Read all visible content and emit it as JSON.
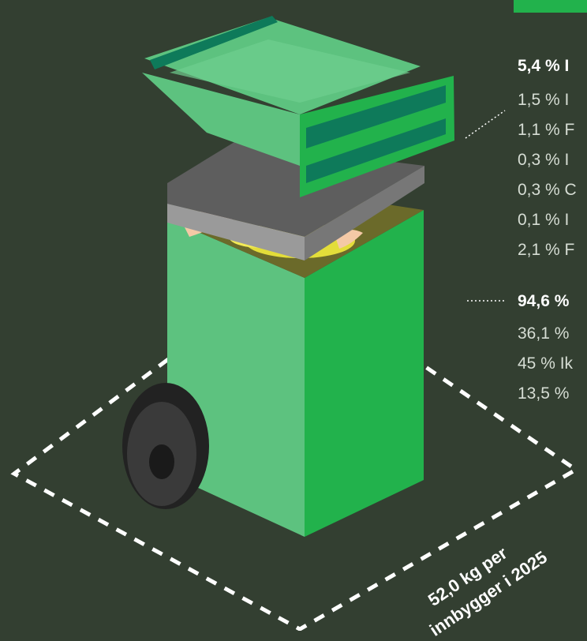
{
  "composition": {
    "heading_1": "5,4 % I",
    "items_1": [
      "1,5 % I",
      "1,1 % F",
      "0,3 % I",
      "0,3 % C",
      "0,1 % I",
      "2,1 % F"
    ],
    "heading_2": "94,6 %",
    "items_2": [
      "36,1 %",
      "45 % Ik",
      "13,5 %"
    ]
  },
  "caption": {
    "line1": "52,0 kg per",
    "line2": "innbygger i 2025"
  },
  "colors": {
    "background": "#333f31",
    "bin_green": "#22b24c",
    "bin_green_light": "#5dc27f",
    "lid_dark": "#0e7a5a",
    "rim_gray": "#5e5e5e"
  },
  "icons": [
    "waste-bin-icon",
    "wheel-icon",
    "food-waste-icon"
  ]
}
